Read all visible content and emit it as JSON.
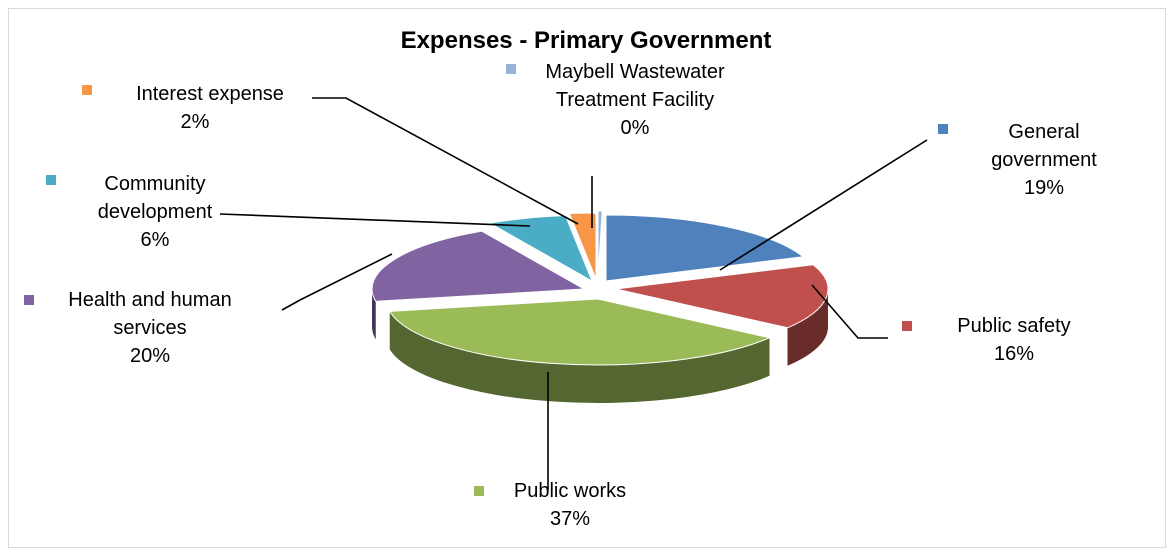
{
  "chart_data": {
    "type": "pie",
    "title": "Expenses - Primary Government",
    "slices": [
      {
        "name": "General government",
        "value": 19,
        "label": "19%",
        "color": "#4f81bd"
      },
      {
        "name": "Public safety",
        "value": 16,
        "label": "16%",
        "color": "#c0504d"
      },
      {
        "name": "Public works",
        "value": 37,
        "label": "37%",
        "color": "#9bbb59"
      },
      {
        "name": "Health and human services",
        "value": 20,
        "label": "20%",
        "color": "#8064a2"
      },
      {
        "name": "Community development",
        "value": 6,
        "label": "6%",
        "color": "#4bacc6"
      },
      {
        "name": "Interest expense",
        "value": 2,
        "label": "2%",
        "color": "#f79646"
      },
      {
        "name": "Maybell Wastewater Treatment Facility",
        "value": 0,
        "label": "0%",
        "color": "#95b3d7"
      }
    ]
  }
}
